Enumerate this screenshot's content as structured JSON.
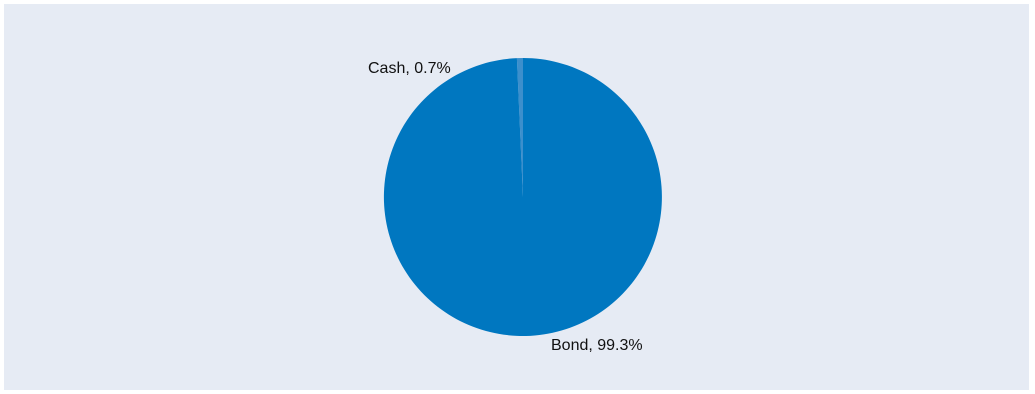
{
  "chart_data": {
    "type": "pie",
    "categories": [
      "Cash",
      "Bond"
    ],
    "values": [
      0.7,
      99.3
    ],
    "labels": [
      "Cash, 0.7%",
      "Bond, 99.3%"
    ],
    "colors": [
      "#3c8fcc",
      "#0077c0"
    ],
    "background": "#e6ebf4",
    "title": "",
    "legend": "none"
  }
}
